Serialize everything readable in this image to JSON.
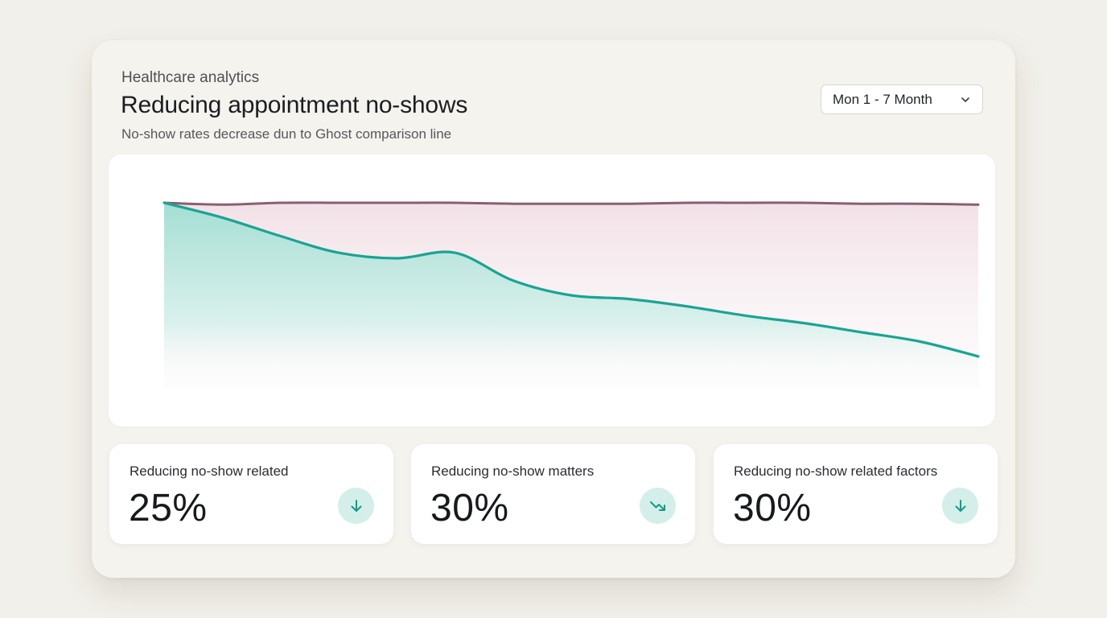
{
  "header": {
    "eyebrow": "Healthcare analytics",
    "title": "Reducing appointment no-shows",
    "subtitle": "No-show rates decrease dun to Ghost comparison line"
  },
  "date_range": {
    "selected": "Mon 1 - 7 Month",
    "icon": "chevron-down-icon"
  },
  "chart_data": {
    "type": "area",
    "x": [
      1,
      2,
      3,
      4,
      5,
      6,
      7,
      8,
      9,
      10,
      11,
      12,
      13,
      14,
      15
    ],
    "series": [
      {
        "values": [
          100,
          99,
          100,
          100,
          100,
          100,
          99.5,
          99.5,
          99.5,
          100,
          100,
          100,
          99.5,
          99.5,
          99
        ]
      },
      {
        "values": [
          100,
          92,
          82,
          73,
          70,
          73,
          58,
          50,
          48,
          44,
          39,
          35,
          30,
          25,
          17
        ]
      }
    ],
    "ylim": [
      0,
      110
    ],
    "grid": false,
    "legend": "none",
    "colors": {
      "ghost_line": "#7d4f66",
      "ghost_fill": "#f1dfe6",
      "main_line": "#1aa493",
      "main_fill": "#a8e1d7"
    }
  },
  "stats": [
    {
      "label": "Reducing no-show related",
      "value": "25%",
      "icon": "arrow-down-icon"
    },
    {
      "label": "Reducing no-show matters",
      "value": "30%",
      "icon": "trend-down-icon"
    },
    {
      "label": "Reducing no-show related factors",
      "value": "30%",
      "icon": "arrow-down-icon"
    }
  ],
  "accent_color": "#1aa493"
}
